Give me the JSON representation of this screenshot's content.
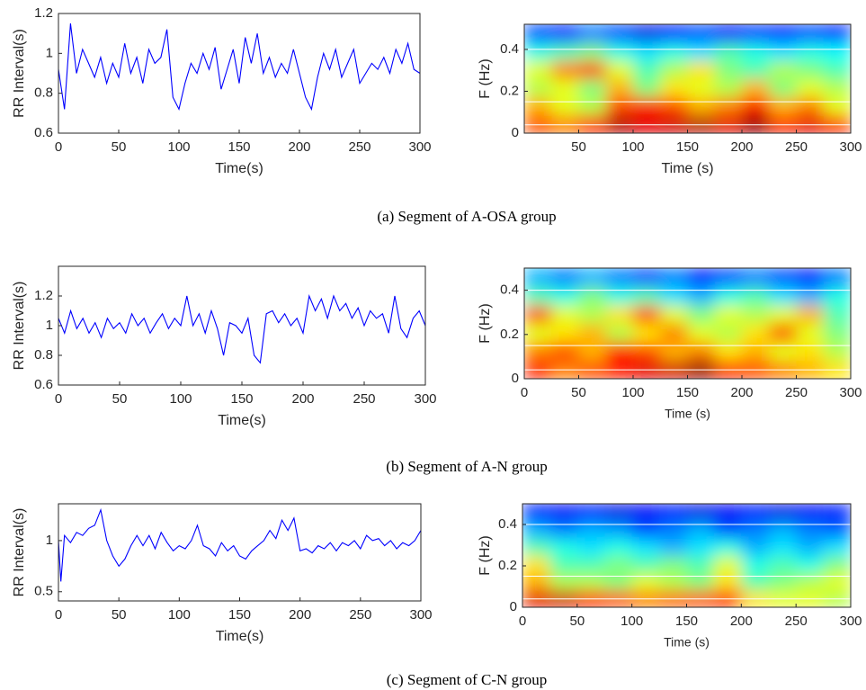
{
  "captions": [
    "(a) Segment of A-OSA group",
    "(b) Segment of A-N group",
    "(c) Segment of C-N group"
  ],
  "chart_data": [
    {
      "type": "line",
      "ylabel": "RR Interval(s)",
      "xlabel": "Time(s)",
      "xlim": [
        0,
        300
      ],
      "ylim": [
        0.6,
        1.2
      ],
      "xticks": [
        0,
        50,
        100,
        150,
        200,
        250,
        300
      ],
      "yticks": [
        0.6,
        0.8,
        1,
        1.2
      ],
      "color": "#0000ff",
      "x": [
        0,
        5,
        10,
        15,
        20,
        25,
        30,
        35,
        40,
        45,
        50,
        55,
        60,
        65,
        70,
        75,
        80,
        85,
        90,
        95,
        100,
        105,
        110,
        115,
        120,
        125,
        130,
        135,
        140,
        145,
        150,
        155,
        160,
        165,
        170,
        175,
        180,
        185,
        190,
        195,
        200,
        205,
        210,
        215,
        220,
        225,
        230,
        235,
        240,
        245,
        250,
        255,
        260,
        265,
        270,
        275,
        280,
        285,
        290,
        295,
        300
      ],
      "values": [
        0.92,
        0.72,
        1.15,
        0.9,
        1.02,
        0.95,
        0.88,
        0.98,
        0.85,
        0.95,
        0.88,
        1.05,
        0.9,
        0.98,
        0.85,
        1.02,
        0.95,
        0.98,
        1.12,
        0.78,
        0.72,
        0.85,
        0.95,
        0.9,
        1.0,
        0.92,
        1.03,
        0.82,
        0.92,
        1.02,
        0.85,
        1.08,
        0.95,
        1.1,
        0.9,
        0.98,
        0.88,
        0.95,
        0.9,
        1.02,
        0.9,
        0.78,
        0.72,
        0.88,
        1.0,
        0.92,
        1.02,
        0.88,
        0.95,
        1.02,
        0.85,
        0.9,
        0.95,
        0.92,
        0.98,
        0.9,
        1.02,
        0.95,
        1.05,
        0.92,
        0.9
      ]
    },
    {
      "type": "heatmap",
      "ylabel": "F (Hz)",
      "xlabel": "Time (s)",
      "xlim": [
        0,
        300
      ],
      "ylim": [
        0,
        0.52
      ],
      "xticks": [
        50,
        100,
        150,
        200,
        250,
        300
      ],
      "yticks": [
        0,
        0.2,
        0.4
      ],
      "colormap": "jet",
      "hlines": [
        0.04,
        0.15,
        0.4
      ],
      "z": [
        [
          0.8,
          0.75,
          0.85,
          0.95,
          0.9,
          0.92,
          0.95,
          0.9,
          0.98,
          0.85,
          0.9,
          0.85
        ],
        [
          0.7,
          0.6,
          0.55,
          0.8,
          0.85,
          0.8,
          0.7,
          0.75,
          0.85,
          0.7,
          0.75,
          0.6
        ],
        [
          0.55,
          0.6,
          0.5,
          0.7,
          0.5,
          0.65,
          0.6,
          0.55,
          0.7,
          0.5,
          0.6,
          0.55
        ],
        [
          0.6,
          0.75,
          0.8,
          0.6,
          0.45,
          0.55,
          0.65,
          0.5,
          0.45,
          0.55,
          0.5,
          0.45
        ],
        [
          0.4,
          0.45,
          0.5,
          0.4,
          0.35,
          0.4,
          0.35,
          0.45,
          0.4,
          0.35,
          0.4,
          0.38
        ],
        [
          0.2,
          0.15,
          0.25,
          0.2,
          0.1,
          0.15,
          0.2,
          0.12,
          0.18,
          0.15,
          0.2,
          0.15
        ]
      ]
    },
    {
      "type": "line",
      "ylabel": "RR Interval(s)",
      "xlabel": "Time(s)",
      "xlim": [
        0,
        300
      ],
      "ylim": [
        0.6,
        1.4
      ],
      "xticks": [
        0,
        50,
        100,
        150,
        200,
        250,
        300
      ],
      "yticks": [
        0.6,
        0.8,
        1,
        1.2
      ],
      "color": "#0000ff",
      "x": [
        0,
        5,
        10,
        15,
        20,
        25,
        30,
        35,
        40,
        45,
        50,
        55,
        60,
        65,
        70,
        75,
        80,
        85,
        90,
        95,
        100,
        105,
        110,
        115,
        120,
        125,
        130,
        135,
        140,
        145,
        150,
        155,
        160,
        165,
        170,
        175,
        180,
        185,
        190,
        195,
        200,
        205,
        210,
        215,
        220,
        225,
        230,
        235,
        240,
        245,
        250,
        255,
        260,
        265,
        270,
        275,
        280,
        285,
        290,
        295,
        300
      ],
      "values": [
        1.05,
        0.95,
        1.1,
        0.98,
        1.05,
        0.95,
        1.02,
        0.92,
        1.05,
        0.98,
        1.02,
        0.95,
        1.08,
        1.0,
        1.05,
        0.95,
        1.02,
        1.08,
        0.98,
        1.05,
        1.0,
        1.2,
        1.0,
        1.08,
        0.95,
        1.1,
        0.98,
        0.8,
        1.02,
        1.0,
        0.95,
        1.05,
        0.8,
        0.75,
        1.08,
        1.1,
        1.02,
        1.08,
        1.0,
        1.05,
        0.95,
        1.2,
        1.1,
        1.18,
        1.05,
        1.2,
        1.1,
        1.15,
        1.05,
        1.12,
        1.0,
        1.1,
        1.05,
        1.08,
        0.95,
        1.2,
        0.98,
        0.92,
        1.05,
        1.1,
        1.0
      ]
    },
    {
      "type": "heatmap",
      "ylabel": "F (Hz)",
      "xlabel": "Time (s)",
      "xlim": [
        0,
        300
      ],
      "ylim": [
        0,
        0.5
      ],
      "xticks": [
        0,
        50,
        100,
        150,
        200,
        250,
        300
      ],
      "yticks": [
        0,
        0.2,
        0.4
      ],
      "colormap": "jet",
      "hlines": [
        0.04,
        0.15,
        0.4
      ],
      "z": [
        [
          0.85,
          0.75,
          0.8,
          0.85,
          0.9,
          0.92,
          0.98,
          0.85,
          0.8,
          0.75,
          0.7,
          0.65
        ],
        [
          0.75,
          0.8,
          0.7,
          0.85,
          0.8,
          0.7,
          0.75,
          0.65,
          0.7,
          0.6,
          0.65,
          0.55
        ],
        [
          0.6,
          0.65,
          0.7,
          0.55,
          0.65,
          0.75,
          0.6,
          0.55,
          0.65,
          0.8,
          0.6,
          0.5
        ],
        [
          0.8,
          0.6,
          0.55,
          0.65,
          0.8,
          0.6,
          0.5,
          0.6,
          0.55,
          0.6,
          0.7,
          0.45
        ],
        [
          0.45,
          0.4,
          0.5,
          0.4,
          0.45,
          0.35,
          0.3,
          0.4,
          0.45,
          0.35,
          0.3,
          0.4
        ],
        [
          0.3,
          0.25,
          0.3,
          0.25,
          0.2,
          0.25,
          0.15,
          0.2,
          0.25,
          0.2,
          0.15,
          0.25
        ]
      ]
    },
    {
      "type": "line",
      "ylabel": "RR Interval(s)",
      "xlabel": "Time(s)",
      "xlim": [
        0,
        300
      ],
      "ylim": [
        0.41,
        1.36
      ],
      "xticks": [
        0,
        50,
        100,
        150,
        200,
        250,
        300
      ],
      "yticks": [
        0.5,
        1
      ],
      "color": "#0000ff",
      "x": [
        0,
        2,
        5,
        10,
        15,
        20,
        25,
        30,
        35,
        40,
        45,
        50,
        55,
        60,
        65,
        70,
        75,
        80,
        85,
        90,
        95,
        100,
        105,
        110,
        115,
        120,
        125,
        130,
        135,
        140,
        145,
        150,
        155,
        160,
        165,
        170,
        175,
        180,
        185,
        190,
        195,
        200,
        205,
        210,
        215,
        220,
        225,
        230,
        235,
        240,
        245,
        250,
        255,
        260,
        265,
        270,
        275,
        280,
        285,
        290,
        295,
        300
      ],
      "values": [
        1.0,
        0.6,
        1.05,
        0.98,
        1.08,
        1.05,
        1.12,
        1.15,
        1.3,
        1.0,
        0.85,
        0.75,
        0.82,
        0.95,
        1.05,
        0.95,
        1.05,
        0.92,
        1.08,
        0.98,
        0.9,
        0.95,
        0.92,
        1.0,
        1.15,
        0.95,
        0.92,
        0.85,
        0.98,
        0.9,
        0.95,
        0.85,
        0.82,
        0.9,
        0.95,
        1.0,
        1.1,
        1.02,
        1.2,
        1.1,
        1.22,
        0.9,
        0.92,
        0.88,
        0.95,
        0.92,
        0.98,
        0.9,
        0.98,
        0.95,
        1.0,
        0.92,
        1.05,
        1.0,
        1.02,
        0.95,
        1.0,
        0.92,
        0.98,
        0.95,
        1.0,
        1.1
      ]
    },
    {
      "type": "heatmap",
      "ylabel": "F (Hz)",
      "xlabel": "Time (s)",
      "xlim": [
        0,
        300
      ],
      "ylim": [
        0,
        0.5
      ],
      "xticks": [
        0,
        50,
        100,
        150,
        200,
        250,
        300
      ],
      "yticks": [
        0,
        0.2,
        0.4
      ],
      "colormap": "jet",
      "hlines": [
        0.04,
        0.15,
        0.4
      ],
      "z": [
        [
          0.9,
          0.92,
          0.85,
          0.8,
          0.75,
          0.78,
          0.8,
          0.85,
          0.65,
          0.6,
          0.6,
          0.55
        ],
        [
          0.7,
          0.55,
          0.55,
          0.5,
          0.6,
          0.55,
          0.5,
          0.65,
          0.45,
          0.5,
          0.55,
          0.6
        ],
        [
          0.65,
          0.45,
          0.45,
          0.5,
          0.45,
          0.5,
          0.45,
          0.6,
          0.4,
          0.45,
          0.4,
          0.5
        ],
        [
          0.45,
          0.4,
          0.35,
          0.4,
          0.35,
          0.3,
          0.35,
          0.4,
          0.3,
          0.35,
          0.3,
          0.35
        ],
        [
          0.3,
          0.25,
          0.3,
          0.28,
          0.2,
          0.25,
          0.3,
          0.2,
          0.25,
          0.3,
          0.25,
          0.22
        ],
        [
          0.15,
          0.12,
          0.15,
          0.1,
          0.12,
          0.15,
          0.1,
          0.12,
          0.15,
          0.1,
          0.12,
          0.15
        ]
      ]
    }
  ]
}
